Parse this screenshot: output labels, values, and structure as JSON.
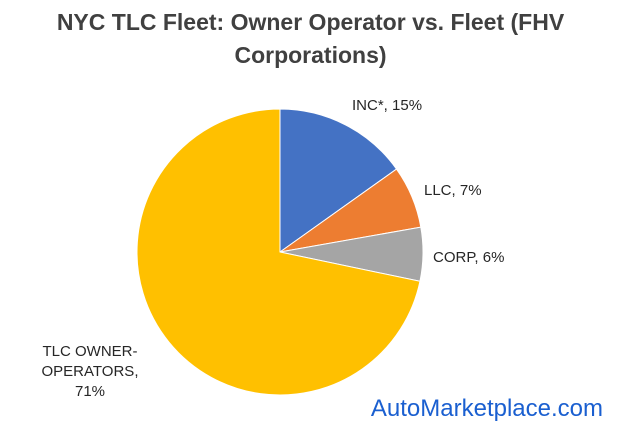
{
  "chart_data": {
    "type": "pie",
    "title": "NYC TLC Fleet: Owner Operator vs. Fleet (FHV Corporations)",
    "categories": [
      "INC*",
      "LLC",
      "CORP",
      "TLC OWNER-OPERATORS"
    ],
    "values": [
      15,
      7,
      6,
      71
    ],
    "value_labels": [
      "15%",
      "7%",
      "6%",
      "71%"
    ],
    "colors": [
      "#4472c4",
      "#ed7d31",
      "#a5a5a5",
      "#ffc000"
    ],
    "watermark": "AutoMarketplace.com"
  }
}
